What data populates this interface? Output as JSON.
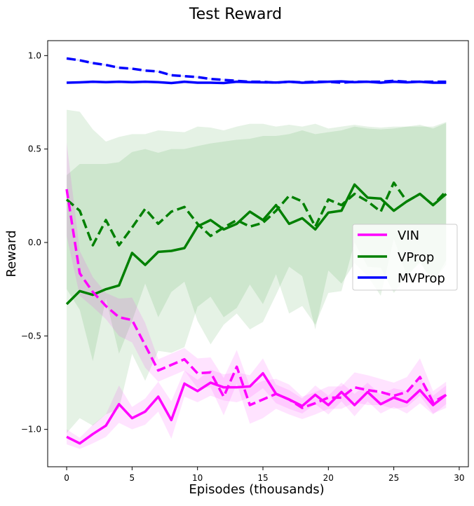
{
  "chart_data": {
    "type": "line",
    "title": "Test Reward",
    "xlabel": "Episodes (thousands)",
    "ylabel": "Reward",
    "xlim": [
      -1.45,
      30.7
    ],
    "ylim": [
      -1.2,
      1.08
    ],
    "xticks": [
      0,
      5,
      10,
      15,
      20,
      25,
      30
    ],
    "xtick_labels": [
      "0",
      "5",
      "10",
      "15",
      "20",
      "25",
      "30"
    ],
    "yticks": [
      -1.0,
      -0.5,
      0.0,
      0.5,
      1.0
    ],
    "ytick_labels": [
      "−1.0",
      "−0.5",
      "0.0",
      "0.5",
      "1.0"
    ],
    "grid": false,
    "legend_position": "center-right",
    "legend": [
      {
        "name": "VIN",
        "color": "#ff00ff"
      },
      {
        "name": "VProp",
        "color": "#008000"
      },
      {
        "name": "MVProp",
        "color": "#0000ff"
      }
    ],
    "x": [
      0,
      1,
      2,
      3,
      4,
      5,
      6,
      7,
      8,
      9,
      10,
      11,
      12,
      13,
      14,
      15,
      16,
      17,
      18,
      19,
      20,
      21,
      22,
      23,
      24,
      25,
      26,
      27,
      28,
      29
    ],
    "series": [
      {
        "method": "VIN",
        "style": "solid",
        "color": "#ff00ff",
        "values": [
          -1.04,
          -1.075,
          -1.025,
          -0.98,
          -0.865,
          -0.94,
          -0.905,
          -0.825,
          -0.95,
          -0.755,
          -0.795,
          -0.75,
          -0.775,
          -0.775,
          -0.77,
          -0.7,
          -0.81,
          -0.84,
          -0.875,
          -0.815,
          -0.87,
          -0.8,
          -0.87,
          -0.8,
          -0.865,
          -0.83,
          -0.855,
          -0.79,
          -0.87,
          -0.815
        ],
        "std": [
          0.04,
          0.03,
          0.05,
          0.06,
          0.1,
          0.06,
          0.07,
          0.08,
          0.1,
          0.07,
          0.06,
          0.07,
          0.07,
          0.08,
          0.06,
          0.08,
          0.05,
          0.05,
          0.04,
          0.05,
          0.05,
          0.05,
          0.06,
          0.05,
          0.05,
          0.05,
          0.06,
          0.07,
          0.05,
          0.05
        ]
      },
      {
        "method": "VIN",
        "style": "dashed",
        "color": "#ff00ff",
        "values": [
          0.285,
          -0.165,
          -0.265,
          -0.34,
          -0.4,
          -0.415,
          -0.55,
          -0.685,
          -0.655,
          -0.625,
          -0.7,
          -0.695,
          -0.825,
          -0.665,
          -0.87,
          -0.84,
          -0.81,
          -0.84,
          -0.885,
          -0.86,
          -0.83,
          -0.83,
          -0.775,
          -0.79,
          -0.8,
          -0.82,
          -0.8,
          -0.72,
          -0.855,
          -0.815
        ],
        "std": [
          0.25,
          0.12,
          0.08,
          0.07,
          0.1,
          0.12,
          0.12,
          0.06,
          0.06,
          0.06,
          0.08,
          0.08,
          0.1,
          0.09,
          0.1,
          0.1,
          0.08,
          0.08,
          0.06,
          0.06,
          0.06,
          0.06,
          0.08,
          0.08,
          0.07,
          0.07,
          0.08,
          0.1,
          0.06,
          0.07
        ]
      },
      {
        "method": "VProp",
        "style": "solid",
        "color": "#008000",
        "values": [
          -0.33,
          -0.26,
          -0.28,
          -0.25,
          -0.23,
          -0.056,
          -0.12,
          -0.05,
          -0.045,
          -0.03,
          0.086,
          0.12,
          0.07,
          0.1,
          0.165,
          0.12,
          0.2,
          0.1,
          0.13,
          0.07,
          0.16,
          0.17,
          0.31,
          0.24,
          0.235,
          0.17,
          0.22,
          0.26,
          0.2,
          0.26
        ],
        "std": [
          0.69,
          0.68,
          0.7,
          0.67,
          0.66,
          0.54,
          0.62,
          0.53,
          0.545,
          0.53,
          0.43,
          0.41,
          0.47,
          0.45,
          0.39,
          0.45,
          0.37,
          0.48,
          0.47,
          0.51,
          0.43,
          0.43,
          0.31,
          0.37,
          0.37,
          0.44,
          0.4,
          0.37,
          0.41,
          0.38
        ]
      },
      {
        "method": "VProp",
        "style": "dashed",
        "color": "#008000",
        "values": [
          0.23,
          0.17,
          -0.015,
          0.12,
          -0.015,
          0.08,
          0.18,
          0.1,
          0.165,
          0.19,
          0.1,
          0.035,
          0.08,
          0.12,
          0.085,
          0.105,
          0.17,
          0.25,
          0.22,
          0.085,
          0.23,
          0.2,
          0.26,
          0.22,
          0.165,
          0.32,
          0.22,
          0.26,
          0.2,
          0.275
        ],
        "std": [
          0.48,
          0.53,
          0.62,
          0.42,
          0.58,
          0.5,
          0.4,
          0.5,
          0.43,
          0.4,
          0.52,
          0.58,
          0.52,
          0.5,
          0.55,
          0.53,
          0.45,
          0.38,
          0.4,
          0.55,
          0.38,
          0.42,
          0.37,
          0.4,
          0.45,
          0.3,
          0.4,
          0.36,
          0.42,
          0.37
        ]
      },
      {
        "method": "MVProp",
        "style": "solid",
        "color": "#0000ff",
        "values": [
          0.855,
          0.857,
          0.86,
          0.858,
          0.86,
          0.858,
          0.86,
          0.858,
          0.853,
          0.86,
          0.855,
          0.855,
          0.853,
          0.86,
          0.858,
          0.857,
          0.856,
          0.86,
          0.855,
          0.857,
          0.86,
          0.862,
          0.858,
          0.86,
          0.855,
          0.86,
          0.857,
          0.86,
          0.855,
          0.855
        ],
        "std": [
          0.005,
          0.005,
          0.005,
          0.005,
          0.005,
          0.005,
          0.005,
          0.005,
          0.005,
          0.005,
          0.005,
          0.005,
          0.005,
          0.005,
          0.005,
          0.005,
          0.005,
          0.005,
          0.005,
          0.005,
          0.005,
          0.005,
          0.005,
          0.005,
          0.005,
          0.005,
          0.005,
          0.005,
          0.005,
          0.005
        ]
      },
      {
        "method": "MVProp",
        "style": "dashed",
        "color": "#0000ff",
        "values": [
          0.985,
          0.975,
          0.96,
          0.95,
          0.935,
          0.93,
          0.92,
          0.915,
          0.895,
          0.89,
          0.885,
          0.875,
          0.87,
          0.865,
          0.86,
          0.86,
          0.855,
          0.86,
          0.857,
          0.86,
          0.86,
          0.855,
          0.86,
          0.86,
          0.86,
          0.865,
          0.86,
          0.86,
          0.86,
          0.86
        ],
        "std": [
          0.005,
          0.005,
          0.005,
          0.005,
          0.005,
          0.005,
          0.005,
          0.005,
          0.005,
          0.005,
          0.005,
          0.005,
          0.005,
          0.005,
          0.005,
          0.005,
          0.005,
          0.005,
          0.005,
          0.005,
          0.005,
          0.005,
          0.005,
          0.005,
          0.005,
          0.005,
          0.005,
          0.005,
          0.005,
          0.005
        ]
      }
    ]
  }
}
